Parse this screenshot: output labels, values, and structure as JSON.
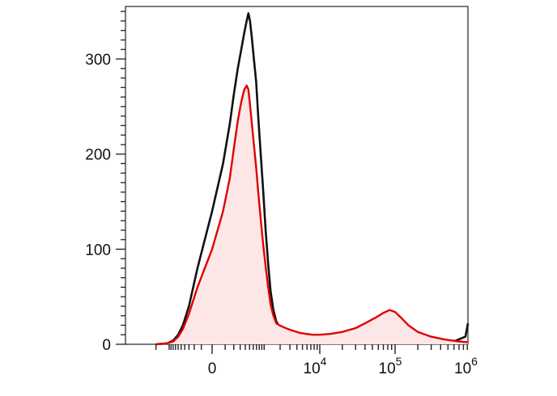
{
  "chart_data": {
    "type": "area",
    "title": "",
    "xlabel": "",
    "ylabel": "",
    "x_scale": "biexponential",
    "xlim": [
      -2000,
      1000000
    ],
    "ylim": [
      0,
      360
    ],
    "grid": false,
    "legend": "none",
    "yticks": [
      {
        "value": 0,
        "label": "0"
      },
      {
        "value": 100,
        "label": "100"
      },
      {
        "value": 200,
        "label": "200"
      },
      {
        "value": 300,
        "label": "300"
      }
    ],
    "xticks": [
      {
        "value": 0,
        "base": "0",
        "exp": ""
      },
      {
        "value": 10000,
        "base": "10",
        "exp": "4"
      },
      {
        "value": 100000,
        "base": "10",
        "exp": "5"
      },
      {
        "value": 1000000,
        "base": "10",
        "exp": "6"
      }
    ],
    "series": [
      {
        "color": "#111111",
        "fill": "none",
        "points": [
          [
            -2000,
            0
          ],
          [
            -1100,
            1
          ],
          [
            -800,
            4
          ],
          [
            -600,
            10
          ],
          [
            -450,
            20
          ],
          [
            -300,
            40
          ],
          [
            -150,
            80
          ],
          [
            0,
            140
          ],
          [
            80,
            190
          ],
          [
            150,
            232
          ],
          [
            200,
            262
          ],
          [
            260,
            290
          ],
          [
            320,
            310
          ],
          [
            380,
            328
          ],
          [
            430,
            340
          ],
          [
            470,
            348
          ],
          [
            510,
            340
          ],
          [
            560,
            322
          ],
          [
            620,
            300
          ],
          [
            690,
            276
          ],
          [
            770,
            236
          ],
          [
            860,
            198
          ],
          [
            960,
            160
          ],
          [
            1070,
            120
          ],
          [
            1200,
            84
          ],
          [
            1330,
            56
          ],
          [
            1500,
            36
          ],
          [
            1700,
            24
          ],
          [
            1950,
            18
          ],
          [
            2300,
            14
          ],
          [
            2800,
            12
          ],
          [
            3500,
            9
          ],
          [
            4500,
            6
          ],
          [
            5800,
            4
          ],
          [
            7500,
            4
          ],
          [
            10000,
            3
          ],
          [
            14000,
            3
          ],
          [
            20000,
            3
          ],
          [
            30000,
            3
          ],
          [
            50000,
            3
          ],
          [
            80000,
            3
          ],
          [
            130000,
            3
          ],
          [
            200000,
            3
          ],
          [
            350000,
            3
          ],
          [
            600000,
            3
          ],
          [
            850000,
            8
          ],
          [
            1000000,
            22
          ]
        ]
      },
      {
        "color": "#e00000",
        "fill": "#fce6e6",
        "points": [
          [
            -2000,
            0
          ],
          [
            -1100,
            1
          ],
          [
            -800,
            3
          ],
          [
            -600,
            8
          ],
          [
            -450,
            16
          ],
          [
            -300,
            32
          ],
          [
            -150,
            60
          ],
          [
            0,
            100
          ],
          [
            80,
            140
          ],
          [
            150,
            175
          ],
          [
            200,
            205
          ],
          [
            260,
            235
          ],
          [
            320,
            255
          ],
          [
            380,
            268
          ],
          [
            430,
            272
          ],
          [
            470,
            268
          ],
          [
            510,
            252
          ],
          [
            560,
            232
          ],
          [
            620,
            210
          ],
          [
            690,
            186
          ],
          [
            770,
            158
          ],
          [
            860,
            130
          ],
          [
            960,
            104
          ],
          [
            1070,
            82
          ],
          [
            1200,
            60
          ],
          [
            1330,
            42
          ],
          [
            1500,
            30
          ],
          [
            1700,
            22
          ],
          [
            1950,
            20
          ],
          [
            2300,
            18
          ],
          [
            2800,
            16
          ],
          [
            3500,
            14
          ],
          [
            4500,
            12
          ],
          [
            5800,
            11
          ],
          [
            7500,
            10
          ],
          [
            10000,
            10
          ],
          [
            14000,
            11
          ],
          [
            20000,
            13
          ],
          [
            30000,
            17
          ],
          [
            40000,
            22
          ],
          [
            55000,
            28
          ],
          [
            70000,
            33
          ],
          [
            85000,
            36
          ],
          [
            100000,
            34
          ],
          [
            120000,
            28
          ],
          [
            150000,
            20
          ],
          [
            200000,
            13
          ],
          [
            300000,
            8
          ],
          [
            450000,
            5
          ],
          [
            700000,
            3
          ],
          [
            1000000,
            2
          ]
        ]
      }
    ]
  }
}
